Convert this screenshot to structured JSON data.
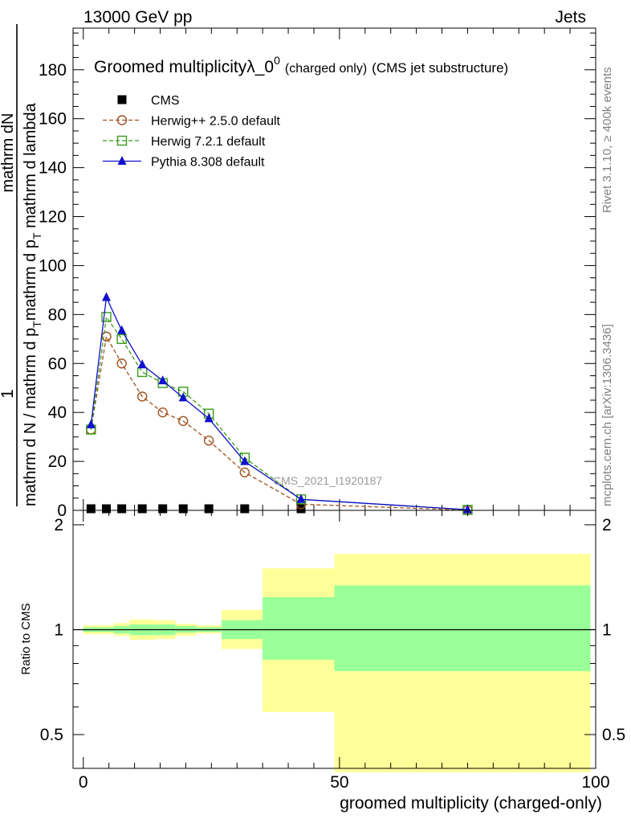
{
  "header": {
    "left": "13000 GeV pp",
    "right": "Jets"
  },
  "side_labels": {
    "rivet": "Rivet 3.1.10, ≥ 400k events",
    "mcplots": "mcplots.cern.ch [arXiv:1306.3436]"
  },
  "chart_data": [
    {
      "type": "line",
      "title": "Groomed multiplicityλ_0",
      "title_sup": "0",
      "title_suffix_small": "(charged only)",
      "title_suffix": "(CMS jet substructure)",
      "ylabel_numerator": "1      mathrm dN",
      "ylabel_denominator": "mathrm d N / mathrm d p_T mathrm d p_T mathrm d lambda",
      "ylabel_num_text": "mathrm dN",
      "ylabel_num_one": "1",
      "ylabel_den_text": "mathrm d N / mathrm d p",
      "ylabel_den_sub": "T",
      "ylabel_den_text2": "mathrm d p",
      "ylabel_den_sub2": "T",
      "ylabel_den_text3": " mathrm d lambda",
      "xlim": [
        -2,
        100
      ],
      "ylim": [
        0,
        197
      ],
      "yticks": [
        0,
        20,
        40,
        60,
        80,
        100,
        120,
        140,
        160,
        180
      ],
      "watermark": "CMS_2021_I1920187",
      "series": [
        {
          "name": "CMS",
          "marker": "filled-square",
          "color": "#000000",
          "x": [
            1.5,
            4.5,
            7.5,
            11.5,
            15.5,
            19.5,
            24.5,
            31.5,
            42.5
          ],
          "y": [
            0.2,
            0.2,
            0.2,
            0.2,
            0.2,
            0.2,
            0.2,
            0.2,
            0.2
          ]
        },
        {
          "name": "Herwig++ 2.5.0 default",
          "marker": "open-circle",
          "color": "#a0521d",
          "dash": true,
          "x": [
            1.5,
            4.5,
            7.5,
            11.5,
            15.5,
            19.5,
            24.5,
            31.5,
            42.5,
            75
          ],
          "y": [
            33,
            71,
            60,
            46.5,
            40,
            36.5,
            28.5,
            15.5,
            2.5,
            0.1
          ]
        },
        {
          "name": "Herwig 7.2.1 default",
          "marker": "open-square",
          "color": "#3a9b1a",
          "dash": true,
          "x": [
            1.5,
            4.5,
            7.5,
            11.5,
            15.5,
            19.5,
            24.5,
            31.5,
            42.5,
            75
          ],
          "y": [
            33,
            79,
            70,
            56.5,
            52,
            48.5,
            39.5,
            21.5,
            4.5,
            0.2
          ]
        },
        {
          "name": "Pythia 8.308 default",
          "marker": "filled-triangle",
          "color": "#1010cc",
          "dash": false,
          "x": [
            1.5,
            4.5,
            7.5,
            11.5,
            15.5,
            19.5,
            24.5,
            31.5,
            42.5,
            75
          ],
          "y": [
            35,
            87,
            73.5,
            59.5,
            53,
            46,
            37.5,
            20,
            4.5,
            0.3
          ]
        }
      ]
    },
    {
      "type": "area",
      "ylabel": "Ratio to CMS",
      "xlabel": "groomed multiplicity (charged-only)",
      "xlim": [
        -2,
        100
      ],
      "ylim": [
        0.4,
        2.2
      ],
      "yscale": "log",
      "yticks": [
        "0.5",
        "1",
        "2"
      ],
      "xticks": [
        "0",
        "50",
        "100"
      ],
      "reference": 1,
      "bins": [
        {
          "x0": 0,
          "x1": 3,
          "stat_lo": 0.985,
          "stat_hi": 1.015,
          "tot_lo": 0.97,
          "tot_hi": 1.03
        },
        {
          "x0": 3,
          "x1": 6,
          "stat_lo": 0.985,
          "stat_hi": 1.015,
          "tot_lo": 0.97,
          "tot_hi": 1.03
        },
        {
          "x0": 6,
          "x1": 9,
          "stat_lo": 0.975,
          "stat_hi": 1.025,
          "tot_lo": 0.96,
          "tot_hi": 1.045
        },
        {
          "x0": 9,
          "x1": 14,
          "stat_lo": 0.965,
          "stat_hi": 1.035,
          "tot_lo": 0.935,
          "tot_hi": 1.07
        },
        {
          "x0": 14,
          "x1": 18,
          "stat_lo": 0.965,
          "stat_hi": 1.035,
          "tot_lo": 0.94,
          "tot_hi": 1.065
        },
        {
          "x0": 18,
          "x1": 22,
          "stat_lo": 0.98,
          "stat_hi": 1.025,
          "tot_lo": 0.96,
          "tot_hi": 1.04
        },
        {
          "x0": 22,
          "x1": 27,
          "stat_lo": 0.985,
          "stat_hi": 1.015,
          "tot_lo": 0.975,
          "tot_hi": 1.03
        },
        {
          "x0": 27,
          "x1": 35,
          "stat_lo": 0.94,
          "stat_hi": 1.065,
          "tot_lo": 0.88,
          "tot_hi": 1.14
        },
        {
          "x0": 35,
          "x1": 49,
          "stat_lo": 0.82,
          "stat_hi": 1.24,
          "tot_lo": 0.58,
          "tot_hi": 1.5
        },
        {
          "x0": 49,
          "x1": 99,
          "stat_lo": 0.76,
          "stat_hi": 1.34,
          "tot_lo": 0.39,
          "tot_hi": 1.65
        }
      ]
    }
  ]
}
